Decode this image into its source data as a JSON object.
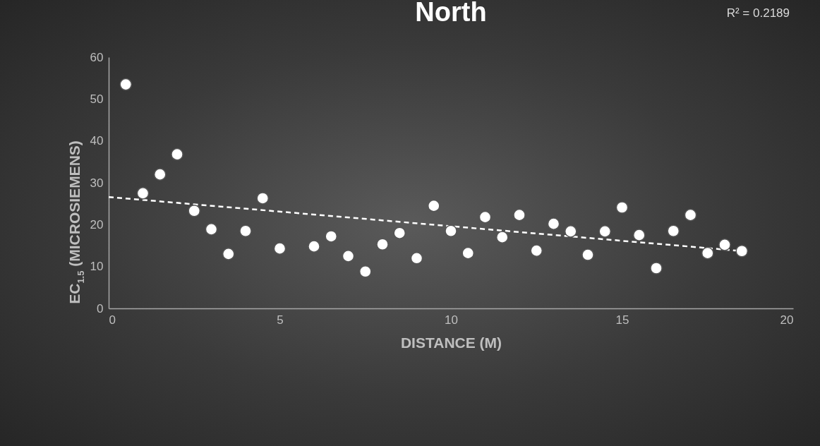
{
  "chart_data": {
    "type": "scatter",
    "title": "North",
    "xlabel": "DISTANCE (M)",
    "ylabel": "EC$_{1.5}$ (MICROSIEMENS)",
    "annotations": [
      "R² = 0.2189"
    ],
    "xlim": [
      0,
      20
    ],
    "xticks": [
      0,
      5,
      10,
      15,
      20
    ],
    "ylim": [
      0,
      60
    ],
    "yticks": [
      0,
      10,
      20,
      30,
      40,
      50,
      60
    ],
    "grid": false,
    "series": [
      {
        "type": "scatter",
        "marker": "circle",
        "color": "#ffffff",
        "x": [
          0.5,
          1,
          1.5,
          2,
          2.5,
          3,
          3.5,
          4,
          4.5,
          5,
          6,
          6.5,
          7,
          7.5,
          8,
          8.5,
          9,
          9.5,
          10,
          10.5,
          11,
          11.5,
          12,
          12.5,
          13,
          13.5,
          14,
          14.5,
          15,
          15.5,
          16,
          16.5,
          17,
          17.5,
          18,
          18.5
        ],
        "values": [
          53.5,
          27.5,
          32,
          36.8,
          23.3,
          18.9,
          13,
          18.5,
          26.3,
          14.3,
          14.8,
          17.2,
          12.5,
          8.8,
          15.3,
          18,
          12,
          24.5,
          18.5,
          13.2,
          21.8,
          17,
          22.3,
          13.8,
          20.2,
          18.4,
          12.8,
          18.4,
          24.1,
          17.5,
          9.6,
          18.5,
          22.3,
          13.2,
          15.2,
          13.7
        ]
      },
      {
        "type": "line",
        "color": "#ffffff",
        "line_style": "dashed",
        "x": [
          0,
          18.5
        ],
        "values": [
          26.6,
          13.7
        ]
      }
    ]
  }
}
